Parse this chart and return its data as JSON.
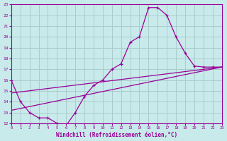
{
  "xlabel": "Windchill (Refroidissement éolien,°C)",
  "bg_color": "#c8eaea",
  "line_color": "#990099",
  "grid_color": "#aacccc",
  "xmin": 0,
  "xmax": 23,
  "ymin": 12,
  "ymax": 23,
  "line1_x": [
    0,
    1,
    2,
    3,
    4,
    5,
    6,
    7,
    8,
    9,
    10,
    11,
    12,
    13,
    14,
    15,
    16,
    17,
    18,
    19,
    20,
    21,
    22,
    23
  ],
  "line1_y": [
    16.0,
    14.0,
    13.0,
    12.5,
    12.5,
    12.0,
    11.8,
    13.0,
    14.5,
    15.5,
    16.0,
    17.0,
    17.5,
    19.5,
    20.0,
    22.7,
    22.7,
    22.0,
    20.0,
    18.5,
    17.3,
    17.2,
    17.2,
    17.2
  ],
  "line2_x": [
    0,
    23
  ],
  "line2_y": [
    13.2,
    17.2
  ],
  "line3_x": [
    0,
    23
  ],
  "line3_y": [
    14.8,
    17.2
  ]
}
